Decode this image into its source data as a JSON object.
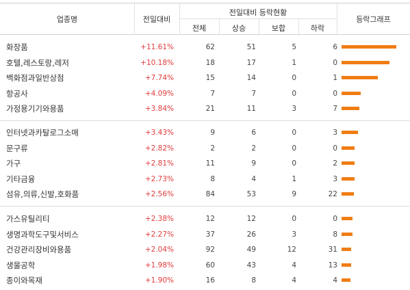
{
  "table": {
    "headers": {
      "name": "업종명",
      "change": "전일대비",
      "status_group": "전일대비 등락현황",
      "total": "전체",
      "up": "상승",
      "flat": "보합",
      "down": "하락",
      "graph": "등락그래프"
    },
    "bar_color": "#f07d14",
    "change_color": "#e03a3a",
    "groups": [
      {
        "rows": [
          {
            "name": "화장품",
            "change": "+11.61%",
            "change_value": 11.61,
            "total": "62",
            "up": "51",
            "flat": "5",
            "down": "6"
          },
          {
            "name": "호텔,레스토랑,레저",
            "change": "+10.18%",
            "change_value": 10.18,
            "total": "18",
            "up": "17",
            "flat": "1",
            "down": "0"
          },
          {
            "name": "백화점과일반상점",
            "change": "+7.74%",
            "change_value": 7.74,
            "total": "15",
            "up": "14",
            "flat": "0",
            "down": "1"
          },
          {
            "name": "항공사",
            "change": "+4.09%",
            "change_value": 4.09,
            "total": "7",
            "up": "7",
            "flat": "0",
            "down": "0"
          },
          {
            "name": "가정용기기와용품",
            "change": "+3.84%",
            "change_value": 3.84,
            "total": "21",
            "up": "11",
            "flat": "3",
            "down": "7"
          }
        ]
      },
      {
        "rows": [
          {
            "name": "인터넷과카탈로그소매",
            "change": "+3.43%",
            "change_value": 3.43,
            "total": "9",
            "up": "6",
            "flat": "0",
            "down": "3"
          },
          {
            "name": "문구류",
            "change": "+2.82%",
            "change_value": 2.82,
            "total": "2",
            "up": "2",
            "flat": "0",
            "down": "0"
          },
          {
            "name": "가구",
            "change": "+2.81%",
            "change_value": 2.81,
            "total": "11",
            "up": "9",
            "flat": "0",
            "down": "2"
          },
          {
            "name": "기타금융",
            "change": "+2.73%",
            "change_value": 2.73,
            "total": "8",
            "up": "4",
            "flat": "1",
            "down": "3"
          },
          {
            "name": "섬유,의류,신발,호화품",
            "change": "+2.56%",
            "change_value": 2.56,
            "total": "84",
            "up": "53",
            "flat": "9",
            "down": "22"
          }
        ]
      },
      {
        "rows": [
          {
            "name": "가스유틸리티",
            "change": "+2.38%",
            "change_value": 2.38,
            "total": "12",
            "up": "12",
            "flat": "0",
            "down": "0"
          },
          {
            "name": "생명과학도구및서비스",
            "change": "+2.27%",
            "change_value": 2.27,
            "total": "37",
            "up": "26",
            "flat": "3",
            "down": "8"
          },
          {
            "name": "건강관리장비와용품",
            "change": "+2.04%",
            "change_value": 2.04,
            "total": "92",
            "up": "49",
            "flat": "12",
            "down": "31"
          },
          {
            "name": "생물공학",
            "change": "+1.98%",
            "change_value": 1.98,
            "total": "60",
            "up": "43",
            "flat": "4",
            "down": "13"
          },
          {
            "name": "종이와목재",
            "change": "+1.90%",
            "change_value": 1.9,
            "total": "16",
            "up": "8",
            "flat": "4",
            "down": "4"
          }
        ]
      }
    ]
  }
}
